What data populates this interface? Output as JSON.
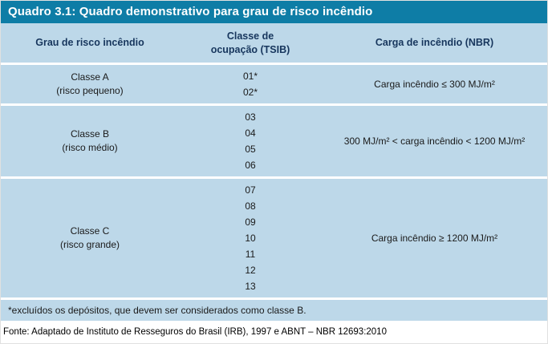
{
  "title": "Quadro 3.1: Quadro demonstrativo para grau de risco incêndio",
  "table": {
    "headers": {
      "grau": "Grau de risco incêndio",
      "classe_line1": "Classe de",
      "classe_line2": "ocupação (TSIB)",
      "carga": "Carga de incêndio (NBR)"
    },
    "rows": [
      {
        "classe_line1": "Classe A",
        "classe_line2": "(risco pequeno)",
        "codes": [
          "01*",
          "02*"
        ],
        "carga": "Carga incêndio ≤ 300 MJ/m²"
      },
      {
        "classe_line1": "Classe B",
        "classe_line2": "(risco médio)",
        "codes": [
          "03",
          "04",
          "05",
          "06"
        ],
        "carga": "300 MJ/m² < carga incêndio < 1200 MJ/m²"
      },
      {
        "classe_line1": "Classe C",
        "classe_line2": "(risco grande)",
        "codes": [
          "07",
          "08",
          "09",
          "10",
          "11",
          "12",
          "13"
        ],
        "carga": "Carga incêndio ≥ 1200 MJ/m²"
      }
    ],
    "footnote": "*excluídos os depósitos, que devem ser considerados como classe B."
  },
  "fonte": "Fonte: Adaptado de Instituto de Resseguros do Brasil (IRB), 1997 e ABNT – NBR 12693:2010",
  "colors": {
    "title_bg": "#0e7da6",
    "table_bg": "#bdd8e9",
    "header_text": "#17365d",
    "body_text": "#1a1a1a"
  }
}
